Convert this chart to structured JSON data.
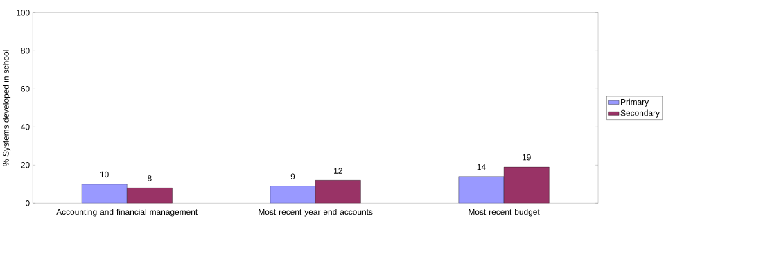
{
  "chart_data": {
    "type": "bar",
    "ylabel": "% Systems developed in school",
    "categories": [
      "Accounting and financial management",
      "Most recent year end accounts",
      "Most recent budget"
    ],
    "series": [
      {
        "name": "Primary",
        "color": "#9999ff",
        "values": [
          10,
          9,
          14
        ]
      },
      {
        "name": "Secondary",
        "color": "#993366",
        "values": [
          8,
          12,
          19
        ]
      }
    ],
    "ylim": [
      0,
      100
    ],
    "yticks": [
      0,
      20,
      40,
      60,
      80,
      100
    ],
    "data_labels": true,
    "legend": "right",
    "grid": false
  }
}
